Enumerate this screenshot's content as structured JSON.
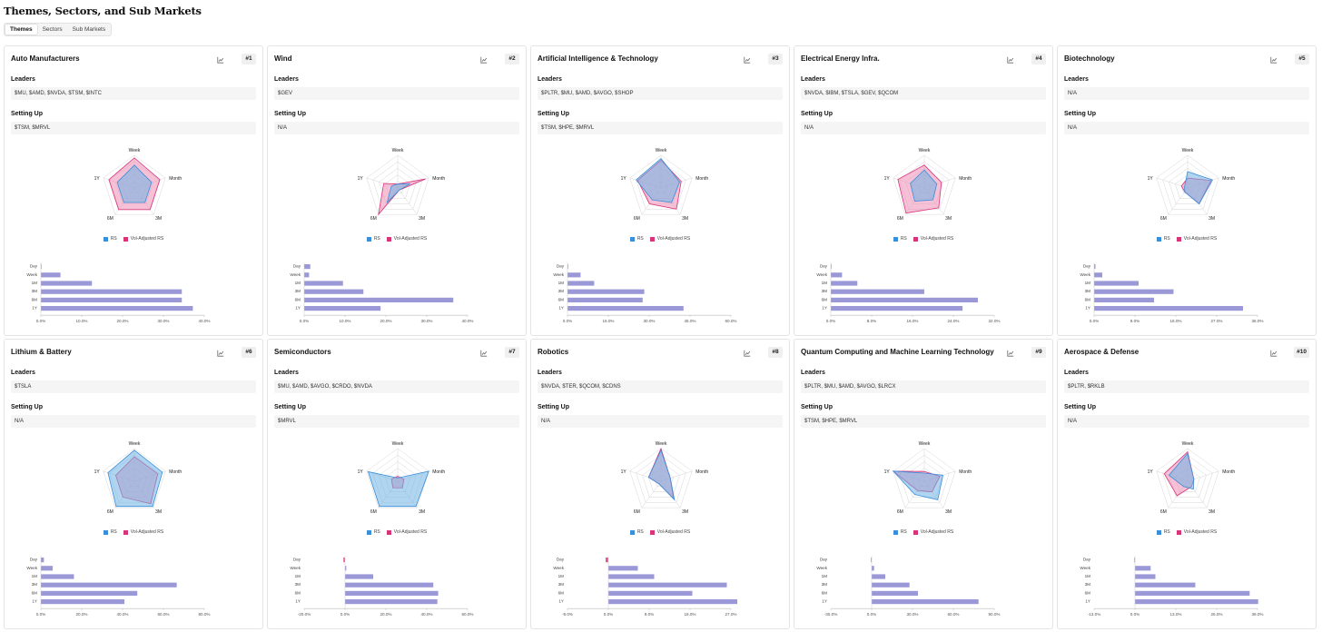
{
  "page": {
    "title": "Themes, Sectors, and Sub Markets"
  },
  "tabs": [
    {
      "label": "Themes",
      "active": true
    },
    {
      "label": "Sectors",
      "active": false
    },
    {
      "label": "Sub Markets",
      "active": false
    }
  ],
  "labels": {
    "leaders": "Leaders",
    "setting_up": "Setting Up"
  },
  "legend": {
    "rs": "RS",
    "vol_adjusted_rs": "Vol-Adjusted RS"
  },
  "colors": {
    "rs": "#3a8fd9",
    "rs_fill": "#6fb3e6",
    "vol_adjusted_rs": "#d9337a",
    "vol_fill": "#ee8db5",
    "bar": "#9b98d8",
    "bar_negative": "#e0589a"
  },
  "icons": {
    "chart_button": "line-chart-icon"
  },
  "chart_data": [
    {
      "type": "card",
      "rank": "#1",
      "title": "Auto Manufacturers",
      "leaders": "$MU, $AMD, $NVDA, $TSM, $INTC",
      "setting_up": "$TSM, $MRVL",
      "radar": {
        "axes": [
          "Week",
          "Month",
          "3M",
          "6M",
          "1Y"
        ],
        "rs": [
          0.7,
          0.55,
          0.55,
          0.55,
          0.55
        ],
        "vol_adjusted_rs": [
          0.92,
          0.82,
          0.82,
          0.82,
          0.82
        ]
      },
      "bars": {
        "categories": [
          "Day",
          "Week",
          "1M",
          "3M",
          "6M",
          "1Y"
        ],
        "values": [
          0.1,
          4.8,
          12.5,
          34.5,
          34.5,
          37.2
        ],
        "ticks": [
          "0.0%",
          "10.0%",
          "20.0%",
          "30.0%",
          "40.0%"
        ],
        "tick_values": [
          0,
          10,
          20,
          30,
          40
        ]
      }
    },
    {
      "type": "card",
      "rank": "#2",
      "title": "Wind",
      "leaders": "$GEV",
      "setting_up": "N/A",
      "radar": {
        "axes": [
          "Week",
          "Month",
          "3M",
          "6M",
          "1Y"
        ],
        "rs": [
          0.12,
          0.4,
          0.08,
          0.55,
          0.2
        ],
        "vol_adjusted_rs": [
          0.12,
          0.9,
          0.08,
          1.0,
          0.45
        ]
      },
      "bars": {
        "categories": [
          "Day",
          "Week",
          "1M",
          "3M",
          "6M",
          "1Y"
        ],
        "values": [
          1.5,
          1.2,
          9.5,
          14.5,
          36.5,
          18.7
        ],
        "ticks": [
          "0.0%",
          "10.0%",
          "20.0%",
          "30.0%",
          "40.0%"
        ],
        "tick_values": [
          0,
          10,
          20,
          30,
          40
        ]
      }
    },
    {
      "type": "card",
      "rank": "#3",
      "title": "Artificial Intelligence & Technology",
      "leaders": "$PLTR, $MU, $AMD, $AVGO, $SHOP",
      "setting_up": "$TSM, $HPE, $MRVL",
      "radar": {
        "axes": [
          "Week",
          "Month",
          "3M",
          "6M",
          "1Y"
        ],
        "rs": [
          0.9,
          0.6,
          0.55,
          0.45,
          0.8
        ],
        "vol_adjusted_rs": [
          0.85,
          0.65,
          0.8,
          0.6,
          0.75
        ]
      },
      "bars": {
        "categories": [
          "Day",
          "Week",
          "1M",
          "3M",
          "6M",
          "1Y"
        ],
        "values": [
          0.2,
          4.8,
          9.8,
          28.2,
          27.6,
          42.6
        ],
        "ticks": [
          "0.0%",
          "15.0%",
          "30.0%",
          "45.0%",
          "60.0%"
        ],
        "tick_values": [
          0,
          15,
          30,
          45,
          60
        ]
      }
    },
    {
      "type": "card",
      "rank": "#4",
      "title": "Electrical Energy Infra.",
      "leaders": "$NVDA, $IBM, $TSLA, $GEV, $QCOM",
      "setting_up": "N/A",
      "radar": {
        "axes": [
          "Week",
          "Month",
          "3M",
          "6M",
          "1Y"
        ],
        "rs": [
          0.55,
          0.4,
          0.45,
          0.5,
          0.45
        ],
        "vol_adjusted_rs": [
          0.7,
          0.55,
          0.75,
          0.95,
          0.85
        ]
      },
      "bars": {
        "categories": [
          "Day",
          "Week",
          "1M",
          "3M",
          "6M",
          "1Y"
        ],
        "values": [
          0.1,
          2.2,
          5.2,
          18.3,
          28.8,
          25.8
        ],
        "ticks": [
          "0.0%",
          "8.0%",
          "16.0%",
          "24.0%",
          "32.0%"
        ],
        "tick_values": [
          0,
          8,
          16,
          24,
          32
        ]
      }
    },
    {
      "type": "card",
      "rank": "#5",
      "title": "Biotechnology",
      "leaders": "N/A",
      "setting_up": "N/A",
      "radar": {
        "axes": [
          "Week",
          "Month",
          "3M",
          "6M",
          "1Y"
        ],
        "rs": [
          0.5,
          0.8,
          0.6,
          0.15,
          0.1
        ],
        "vol_adjusted_rs": [
          0.3,
          0.75,
          0.6,
          0.15,
          0.2
        ]
      },
      "bars": {
        "categories": [
          "Day",
          "Week",
          "1M",
          "3M",
          "6M",
          "1Y"
        ],
        "values": [
          0.3,
          1.8,
          9.8,
          17.5,
          13.2,
          32.8
        ],
        "ticks": [
          "0.0%",
          "9.0%",
          "18.0%",
          "27.0%",
          "36.0%"
        ],
        "tick_values": [
          0,
          9,
          18,
          27,
          36
        ]
      }
    },
    {
      "type": "card",
      "rank": "#6",
      "title": "Lithium & Battery",
      "leaders": "$TSLA",
      "setting_up": "N/A",
      "radar": {
        "axes": [
          "Week",
          "Month",
          "3M",
          "6M",
          "1Y"
        ],
        "rs": [
          0.95,
          0.9,
          0.95,
          0.95,
          0.85
        ],
        "vol_adjusted_rs": [
          0.75,
          0.75,
          0.85,
          0.6,
          0.6
        ]
      },
      "bars": {
        "categories": [
          "Day",
          "Week",
          "1M",
          "3M",
          "6M",
          "1Y"
        ],
        "values": [
          1.5,
          5.8,
          16.2,
          66.5,
          47.2,
          40.9
        ],
        "ticks": [
          "0.0%",
          "20.0%",
          "40.0%",
          "60.0%",
          "80.0%"
        ],
        "tick_values": [
          0,
          20,
          40,
          60,
          80
        ]
      }
    },
    {
      "type": "card",
      "rank": "#7",
      "title": "Semiconductors",
      "leaders": "$MU, $AMD, $AVGO, $CRDO, $NVDA",
      "setting_up": "$MRVL",
      "radar": {
        "axes": [
          "Week",
          "Month",
          "3M",
          "6M",
          "1Y"
        ],
        "rs": [
          0.1,
          1.0,
          0.95,
          0.95,
          0.95
        ],
        "vol_adjusted_rs": [
          0.15,
          0.2,
          0.25,
          0.25,
          0.2
        ]
      },
      "bars": {
        "categories": [
          "Day",
          "Week",
          "1M",
          "3M",
          "6M",
          "1Y"
        ],
        "values": [
          -0.8,
          0.6,
          13.8,
          43.2,
          45.6,
          45.2
        ],
        "ticks": [
          "-20.0%",
          "0.0%",
          "20.0%",
          "40.0%",
          "60.0%"
        ],
        "tick_values": [
          -20,
          0,
          20,
          40,
          60
        ]
      }
    },
    {
      "type": "card",
      "rank": "#8",
      "title": "Robotics",
      "leaders": "$NVDA, $TER, $QCOM, $CDNS",
      "setting_up": "N/A",
      "radar": {
        "axes": [
          "Week",
          "Month",
          "3M",
          "6M",
          "1Y"
        ],
        "rs": [
          0.95,
          0.3,
          0.7,
          0.1,
          0.4
        ],
        "vol_adjusted_rs": [
          1.0,
          0.3,
          0.65,
          0.1,
          0.4
        ]
      },
      "bars": {
        "categories": [
          "Day",
          "Week",
          "1M",
          "3M",
          "6M",
          "1Y"
        ],
        "values": [
          -0.6,
          6.5,
          10.1,
          26.1,
          18.5,
          28.4
        ],
        "ticks": [
          "-9.0%",
          "0.0%",
          "9.0%",
          "18.0%",
          "27.0%"
        ],
        "tick_values": [
          -9,
          0,
          9,
          18,
          27
        ]
      }
    },
    {
      "type": "card",
      "rank": "#9",
      "title": "Quantum Computing and Machine Learning Technology",
      "leaders": "$PLTR, $MU, $AMD, $AVGO, $LRCX",
      "setting_up": "$TSM, $HPE, $MRVL",
      "radar": {
        "axes": [
          "Week",
          "Month",
          "3M",
          "6M",
          "1Y"
        ],
        "rs": [
          0.25,
          0.6,
          0.7,
          0.5,
          1.0
        ],
        "vol_adjusted_rs": [
          0.3,
          0.5,
          0.4,
          0.35,
          1.0
        ]
      },
      "bars": {
        "categories": [
          "Day",
          "Week",
          "1M",
          "3M",
          "6M",
          "1Y"
        ],
        "values": [
          -0.5,
          1.8,
          10.0,
          27.8,
          34.0,
          78.5
        ],
        "ticks": [
          "-30.0%",
          "0.0%",
          "30.0%",
          "60.0%",
          "90.0%"
        ],
        "tick_values": [
          -30,
          0,
          30,
          60,
          90
        ]
      }
    },
    {
      "type": "card",
      "rank": "#10",
      "title": "Aerospace & Defense",
      "leaders": "$PLTR, $RKLB",
      "setting_up": "N/A",
      "radar": {
        "axes": [
          "Week",
          "Month",
          "3M",
          "6M",
          "1Y"
        ],
        "rs": [
          0.85,
          0.2,
          0.3,
          0.2,
          0.6
        ],
        "vol_adjusted_rs": [
          0.9,
          0.2,
          0.2,
          0.55,
          0.75
        ]
      },
      "bars": {
        "categories": [
          "Day",
          "Week",
          "1M",
          "3M",
          "6M",
          "1Y"
        ],
        "values": [
          -0.2,
          5.0,
          6.5,
          19.2,
          36.5,
          39.2
        ],
        "ticks": [
          "-13.0%",
          "0.0%",
          "13.0%",
          "26.0%",
          "39.0%"
        ],
        "tick_values": [
          -13,
          0,
          13,
          26,
          39
        ]
      }
    }
  ]
}
